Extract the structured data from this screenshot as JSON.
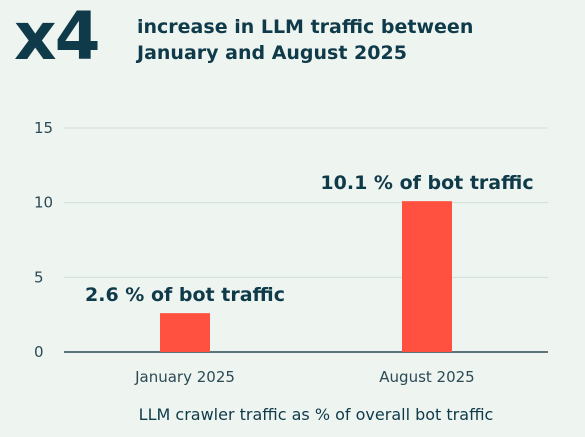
{
  "header": {
    "multiplier": "x4",
    "headline": "increase in LLM traffic between January and August 2025"
  },
  "colors": {
    "bar": "#ff5040",
    "text": "#0f3a4a",
    "axis": "#2b4a55",
    "grid": "#cfe0d6",
    "background": "#eef4ef"
  },
  "chart_data": {
    "type": "bar",
    "categories": [
      "January 2025",
      "August 2025"
    ],
    "values": [
      2.6,
      10.1
    ],
    "data_labels": [
      "2.6 % of bot traffic",
      "10.1 % of bot traffic"
    ],
    "xlabel": "LLM crawler traffic as % of overall bot traffic",
    "ylabel": "",
    "ylim": [
      0,
      15
    ],
    "yticks": [
      "0",
      "5",
      "10",
      "15"
    ],
    "grid": true
  }
}
